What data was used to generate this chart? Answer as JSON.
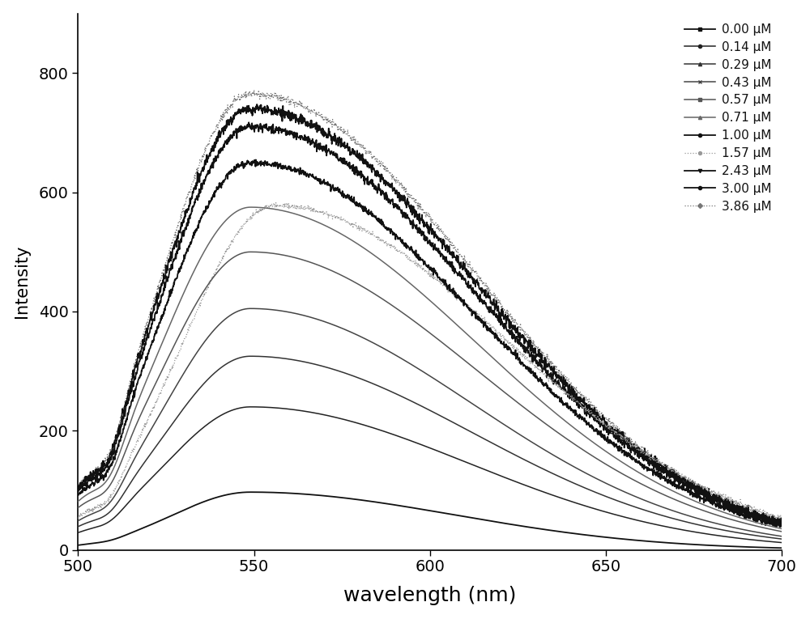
{
  "labels": [
    "0.00 μM",
    "0.14 μM",
    "0.29 μM",
    "0.43 μM",
    "0.57 μM",
    "0.71 μM",
    "1.00 μM",
    "1.57 μM",
    "2.43 μM",
    "3.00 μM",
    "3.86 μM"
  ],
  "peak_intensities": [
    97,
    240,
    325,
    405,
    500,
    575,
    650,
    578,
    710,
    740,
    765
  ],
  "peak_wavelengths": [
    549,
    549,
    549,
    549,
    549,
    549,
    549,
    556,
    549,
    549,
    549
  ],
  "left_widths": [
    22,
    24,
    24,
    24,
    25,
    25,
    25,
    26,
    25,
    25,
    25
  ],
  "right_widths": [
    58,
    62,
    63,
    63,
    64,
    64,
    64,
    66,
    64,
    64,
    64
  ],
  "start_vals": [
    0,
    2,
    3,
    4,
    5,
    6,
    7,
    5,
    8,
    9,
    10
  ],
  "dip_depths": [
    0.85,
    0.8,
    0.78,
    0.78,
    0.77,
    0.77,
    0.76,
    0.77,
    0.76,
    0.76,
    0.75
  ],
  "line_styles": [
    "-",
    "-",
    "-",
    "-",
    "-",
    "-",
    "-",
    ":",
    "-",
    "-",
    ":"
  ],
  "line_colors": [
    "#111111",
    "#222222",
    "#333333",
    "#444444",
    "#555555",
    "#666666",
    "#111111",
    "#999999",
    "#111111",
    "#111111",
    "#777777"
  ],
  "line_widths": [
    1.3,
    1.1,
    1.1,
    1.1,
    1.1,
    1.1,
    1.3,
    0.9,
    1.3,
    1.3,
    0.9
  ],
  "markers": [
    "s",
    "o",
    "^",
    "x",
    "s",
    "^",
    "o",
    "8",
    "v",
    "o",
    "D"
  ],
  "marker_sizes": [
    3,
    3,
    3,
    3,
    3,
    3,
    3,
    3,
    3,
    3,
    3
  ],
  "noise_scales": [
    0,
    0,
    0,
    0,
    0,
    0,
    2.5,
    2.0,
    3.5,
    4.0,
    3.0
  ],
  "xlabel": "wavelength (nm)",
  "ylabel": "Intensity",
  "xlim": [
    500,
    700
  ],
  "ylim": [
    0,
    900
  ],
  "yticks": [
    0,
    200,
    400,
    600,
    800
  ],
  "xticks": [
    500,
    550,
    600,
    650,
    700
  ],
  "background_color": "#ffffff",
  "figure_background": "#ffffff",
  "xlabel_fontsize": 18,
  "ylabel_fontsize": 15,
  "tick_fontsize": 14
}
